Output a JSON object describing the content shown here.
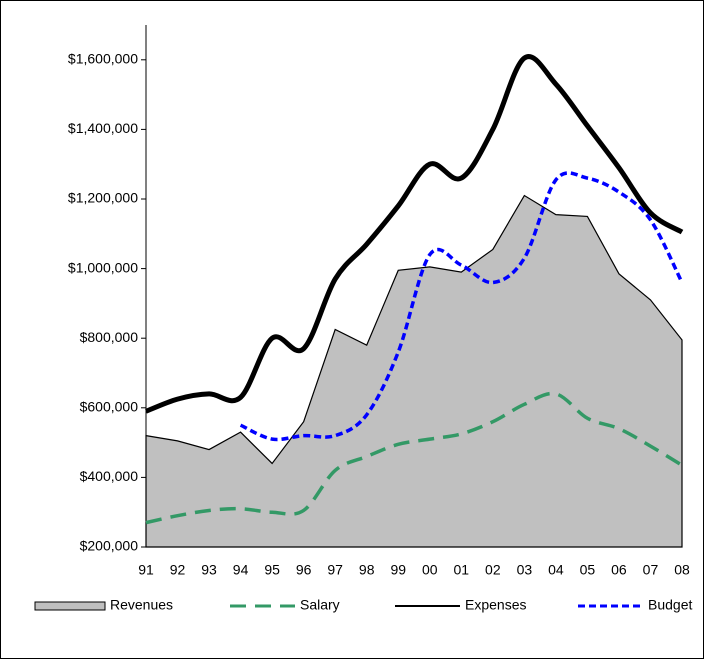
{
  "chart_data": {
    "type": "line",
    "categories": [
      "91",
      "92",
      "93",
      "94",
      "95",
      "96",
      "97",
      "98",
      "99",
      "00",
      "01",
      "02",
      "03",
      "04",
      "05",
      "06",
      "07",
      "08"
    ],
    "series": [
      {
        "name": "Revenues",
        "kind": "area",
        "color": "#c0c0c0",
        "values": [
          520000,
          505000,
          480000,
          530000,
          440000,
          560000,
          825000,
          780000,
          995000,
          1005000,
          990000,
          1055000,
          1210000,
          1155000,
          1150000,
          985000,
          910000,
          795000
        ]
      },
      {
        "name": "Salary",
        "color": "#339966",
        "dash": "long",
        "values": [
          270000,
          290000,
          305000,
          310000,
          300000,
          305000,
          420000,
          460000,
          495000,
          510000,
          525000,
          560000,
          610000,
          640000,
          570000,
          540000,
          490000,
          435000
        ]
      },
      {
        "name": "Expenses",
        "color": "#000000",
        "values": [
          590000,
          625000,
          640000,
          630000,
          800000,
          770000,
          970000,
          1070000,
          1180000,
          1300000,
          1260000,
          1400000,
          1605000,
          1530000,
          1410000,
          1290000,
          1160000,
          1105000
        ]
      },
      {
        "name": "Budget",
        "color": "#0000ff",
        "dash": "short",
        "values": [
          null,
          null,
          null,
          550000,
          510000,
          520000,
          520000,
          580000,
          760000,
          1040000,
          1010000,
          960000,
          1030000,
          1255000,
          1260000,
          1220000,
          1140000,
          960000
        ]
      }
    ],
    "ylim": [
      200000,
      1700000
    ],
    "yticks": [
      {
        "value": 200000,
        "label": "$200,000"
      },
      {
        "value": 400000,
        "label": "$400,000"
      },
      {
        "value": 600000,
        "label": "$600,000"
      },
      {
        "value": 800000,
        "label": "$800,000"
      },
      {
        "value": 1000000,
        "label": "$1,000,000"
      },
      {
        "value": 1200000,
        "label": "$1,200,000"
      },
      {
        "value": 1400000,
        "label": "$1,400,000"
      },
      {
        "value": 1600000,
        "label": "$1,600,000"
      }
    ],
    "legend": "bottom"
  }
}
